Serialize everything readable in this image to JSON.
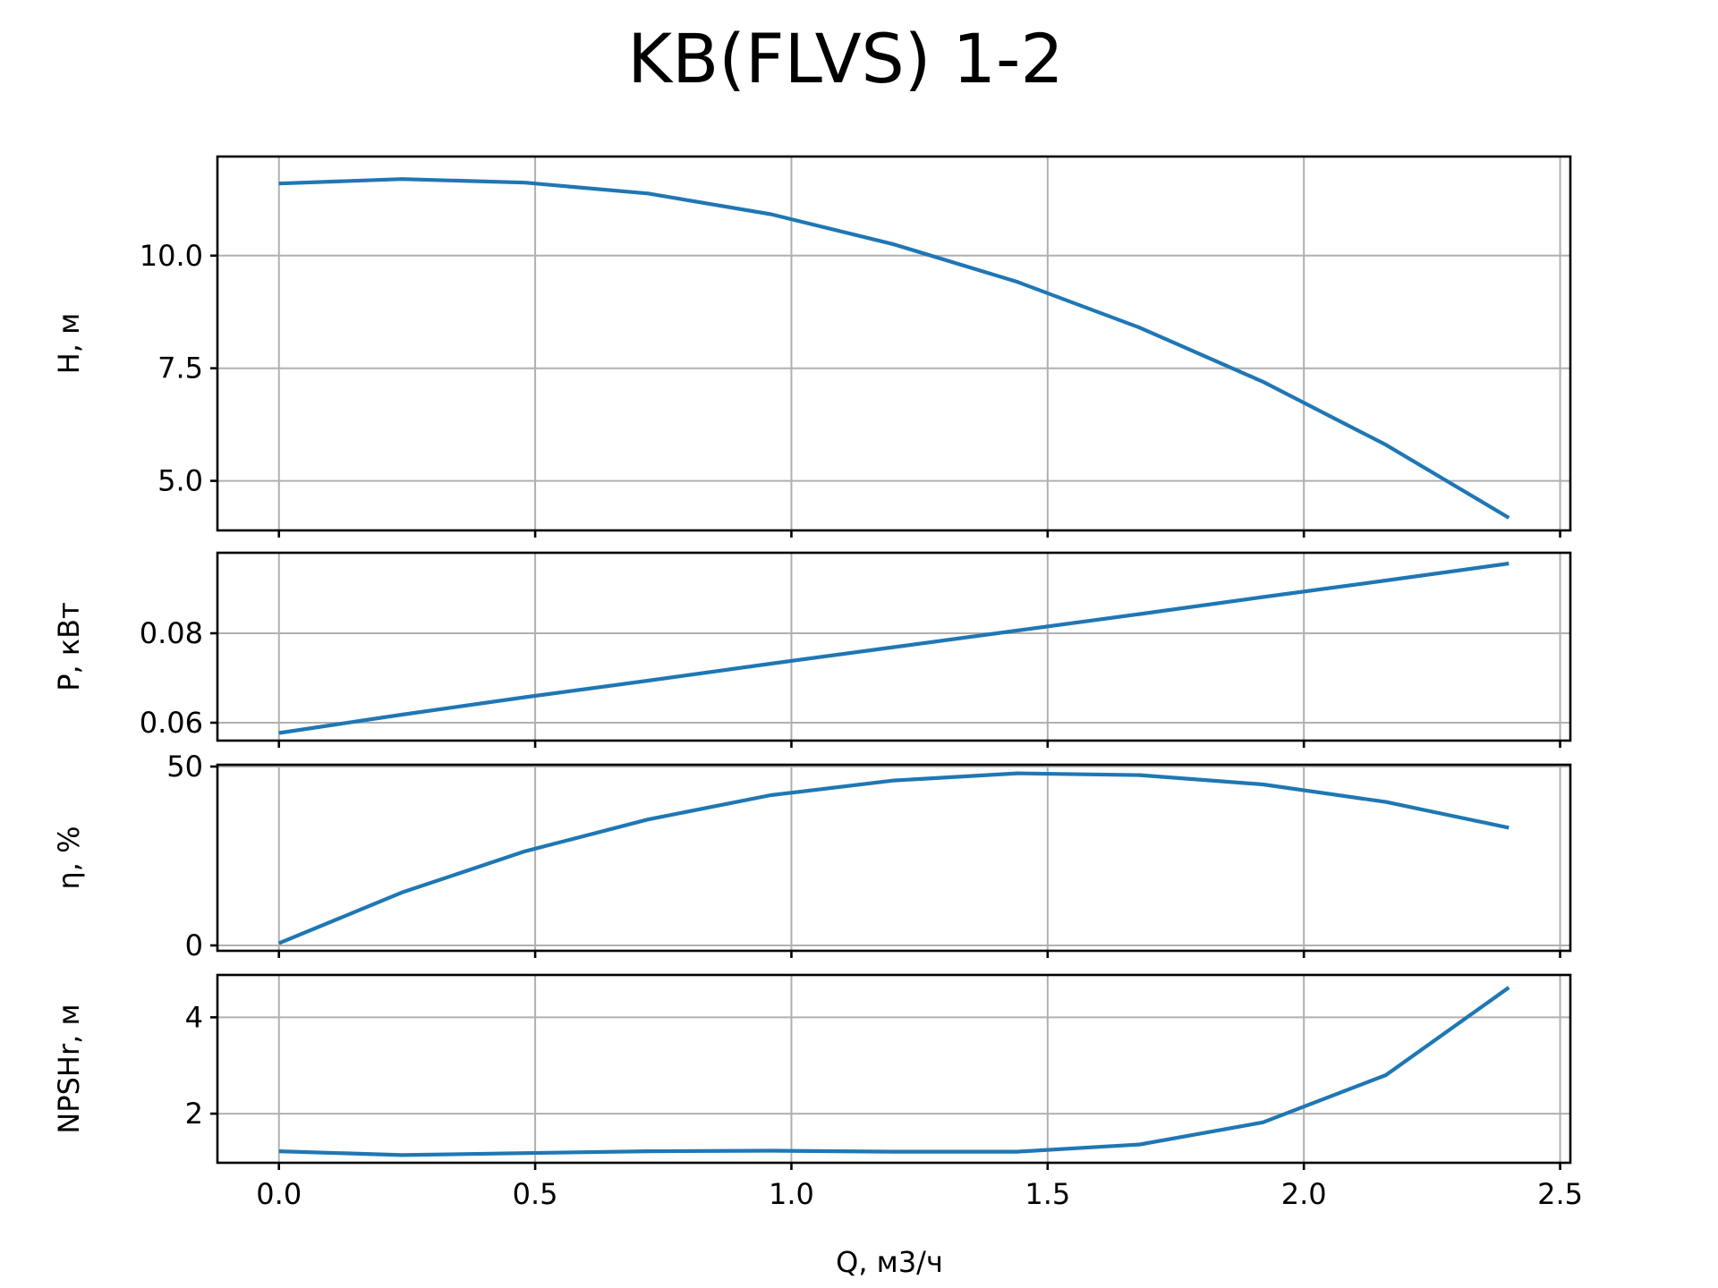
{
  "chart_data": {
    "type": "line",
    "title": "KB(FLVS) 1-2",
    "xlabel": "Q, м3/ч",
    "xlim": [
      -0.12,
      2.52
    ],
    "x_ticks": [
      0.0,
      0.5,
      1.0,
      1.5,
      2.0,
      2.5
    ],
    "x_tick_labels": [
      "0.0",
      "0.5",
      "1.0",
      "1.5",
      "2.0",
      "2.5"
    ],
    "grid": true,
    "line_color": "#1f77b4",
    "x": [
      0.0,
      0.24,
      0.48,
      0.72,
      0.96,
      1.2,
      1.44,
      1.68,
      1.92,
      2.16,
      2.4
    ],
    "panels": [
      {
        "ylabel": "H, м",
        "ylim": [
          3.9,
          12.2
        ],
        "y_ticks": [
          5.0,
          7.5,
          10.0
        ],
        "y_tick_labels": [
          "5.0",
          "7.5",
          "10.0"
        ],
        "values": [
          11.6,
          11.7,
          11.62,
          11.38,
          10.92,
          10.25,
          9.42,
          8.4,
          7.2,
          5.8,
          4.18
        ]
      },
      {
        "ylabel": "P, кВт",
        "ylim": [
          0.056,
          0.098
        ],
        "y_ticks": [
          0.06,
          0.08
        ],
        "y_tick_labels": [
          "0.06",
          "0.08"
        ],
        "values": [
          0.0577,
          0.0618,
          0.0657,
          0.0694,
          0.0732,
          0.0769,
          0.0806,
          0.0843,
          0.0881,
          0.0918,
          0.0956
        ]
      },
      {
        "ylabel": "η, %",
        "ylim": [
          -1.5,
          50.5
        ],
        "y_ticks": [
          0,
          50
        ],
        "y_tick_labels": [
          "0",
          "50"
        ],
        "values": [
          0.6,
          14.8,
          26.3,
          35.2,
          42.0,
          46.1,
          48.1,
          47.6,
          45.0,
          40.1,
          32.9
        ]
      },
      {
        "ylabel": "NPSHr, м",
        "ylim": [
          0.98,
          4.88
        ],
        "y_ticks": [
          2,
          4
        ],
        "y_tick_labels": [
          "2",
          "4"
        ],
        "values": [
          1.22,
          1.14,
          1.18,
          1.22,
          1.23,
          1.21,
          1.21,
          1.36,
          1.82,
          2.8,
          4.62
        ]
      }
    ]
  }
}
